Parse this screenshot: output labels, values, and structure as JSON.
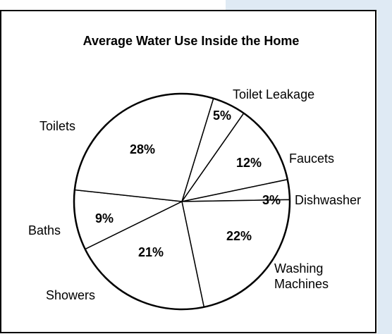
{
  "chart_data": {
    "type": "pie",
    "title": "Average Water Use Inside the Home",
    "slices": [
      {
        "label": "Toilet Leakage",
        "value": 5,
        "value_label": "5%"
      },
      {
        "label": "Faucets",
        "value": 12,
        "value_label": "12%"
      },
      {
        "label": "Dishwasher",
        "value": 3,
        "value_label": "3%"
      },
      {
        "label": "Washing Machines",
        "value": 22,
        "value_label": "22%"
      },
      {
        "label": "Showers",
        "value": 21,
        "value_label": "21%"
      },
      {
        "label": "Baths",
        "value": 9,
        "value_label": "9%"
      },
      {
        "label": "Toilets",
        "value": 28,
        "value_label": "28%"
      }
    ]
  }
}
